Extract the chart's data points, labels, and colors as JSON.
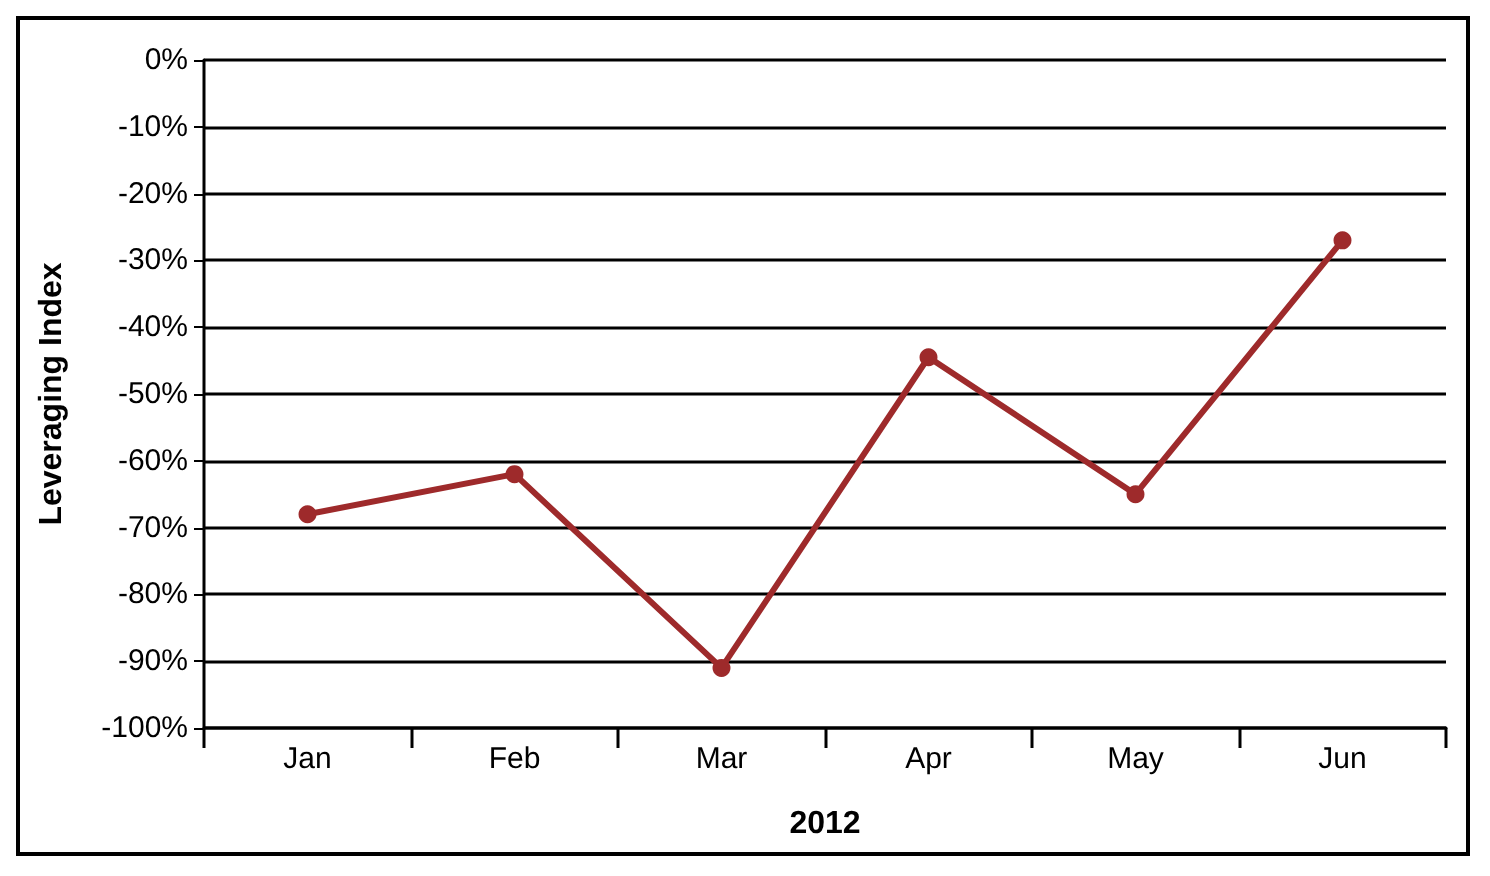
{
  "chart_data": {
    "type": "line",
    "xlabel": "2012",
    "ylabel": "Leveraging Index",
    "categories": [
      "Jan",
      "Feb",
      "Mar",
      "Apr",
      "May",
      "Jun"
    ],
    "series": [
      {
        "color": "#9e2a2b",
        "values": [
          -68,
          -62,
          -91,
          -44.5,
          -65,
          -27
        ]
      }
    ],
    "ylim": [
      -100,
      0
    ],
    "yticks": [
      {
        "value": -100,
        "label": "-100%"
      },
      {
        "value": -90,
        "label": "-90%"
      },
      {
        "value": -80,
        "label": "-80%"
      },
      {
        "value": -70,
        "label": "-70%"
      },
      {
        "value": -60,
        "label": "-60%"
      },
      {
        "value": -50,
        "label": "-50%"
      },
      {
        "value": -40,
        "label": "-40%"
      },
      {
        "value": -30,
        "label": "-30%"
      },
      {
        "value": -20,
        "label": "-20%"
      },
      {
        "value": -10,
        "label": "-10%"
      },
      {
        "value": 0,
        "label": "0%"
      }
    ],
    "grid": "y",
    "marker": "circle",
    "line_style": "solid"
  }
}
